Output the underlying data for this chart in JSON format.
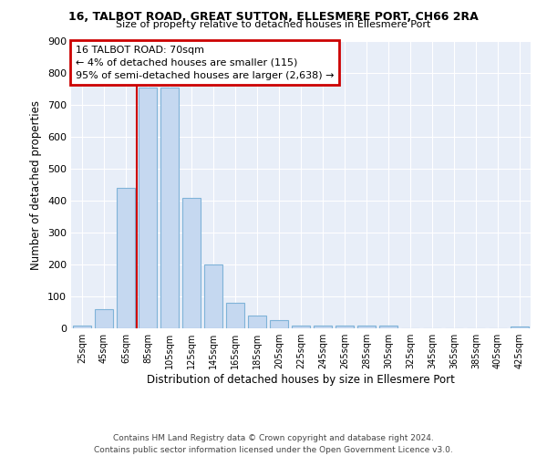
{
  "title": "16, TALBOT ROAD, GREAT SUTTON, ELLESMERE PORT, CH66 2RA",
  "subtitle": "Size of property relative to detached houses in Ellesmere Port",
  "xlabel": "Distribution of detached houses by size in Ellesmere Port",
  "ylabel": "Number of detached properties",
  "bar_color": "#c5d8f0",
  "bar_edge_color": "#7fb3d8",
  "background_color": "#e8eef8",
  "grid_color": "#ffffff",
  "categories": [
    "25sqm",
    "45sqm",
    "65sqm",
    "85sqm",
    "105sqm",
    "125sqm",
    "145sqm",
    "165sqm",
    "185sqm",
    "205sqm",
    "225sqm",
    "245sqm",
    "265sqm",
    "285sqm",
    "305sqm",
    "325sqm",
    "345sqm",
    "365sqm",
    "385sqm",
    "405sqm",
    "425sqm"
  ],
  "values": [
    10,
    60,
    440,
    755,
    755,
    410,
    200,
    80,
    40,
    27,
    10,
    10,
    10,
    10,
    8,
    0,
    0,
    0,
    0,
    0,
    7
  ],
  "ylim": [
    0,
    900
  ],
  "yticks": [
    0,
    100,
    200,
    300,
    400,
    500,
    600,
    700,
    800,
    900
  ],
  "vline_x": 2.5,
  "annotation_title": "16 TALBOT ROAD: 70sqm",
  "annotation_line1": "← 4% of detached houses are smaller (115)",
  "annotation_line2": "95% of semi-detached houses are larger (2,638) →",
  "annotation_box_color": "#ffffff",
  "annotation_box_edge": "#cc0000",
  "vline_color": "#cc0000",
  "footer1": "Contains HM Land Registry data © Crown copyright and database right 2024.",
  "footer2": "Contains public sector information licensed under the Open Government Licence v3.0."
}
